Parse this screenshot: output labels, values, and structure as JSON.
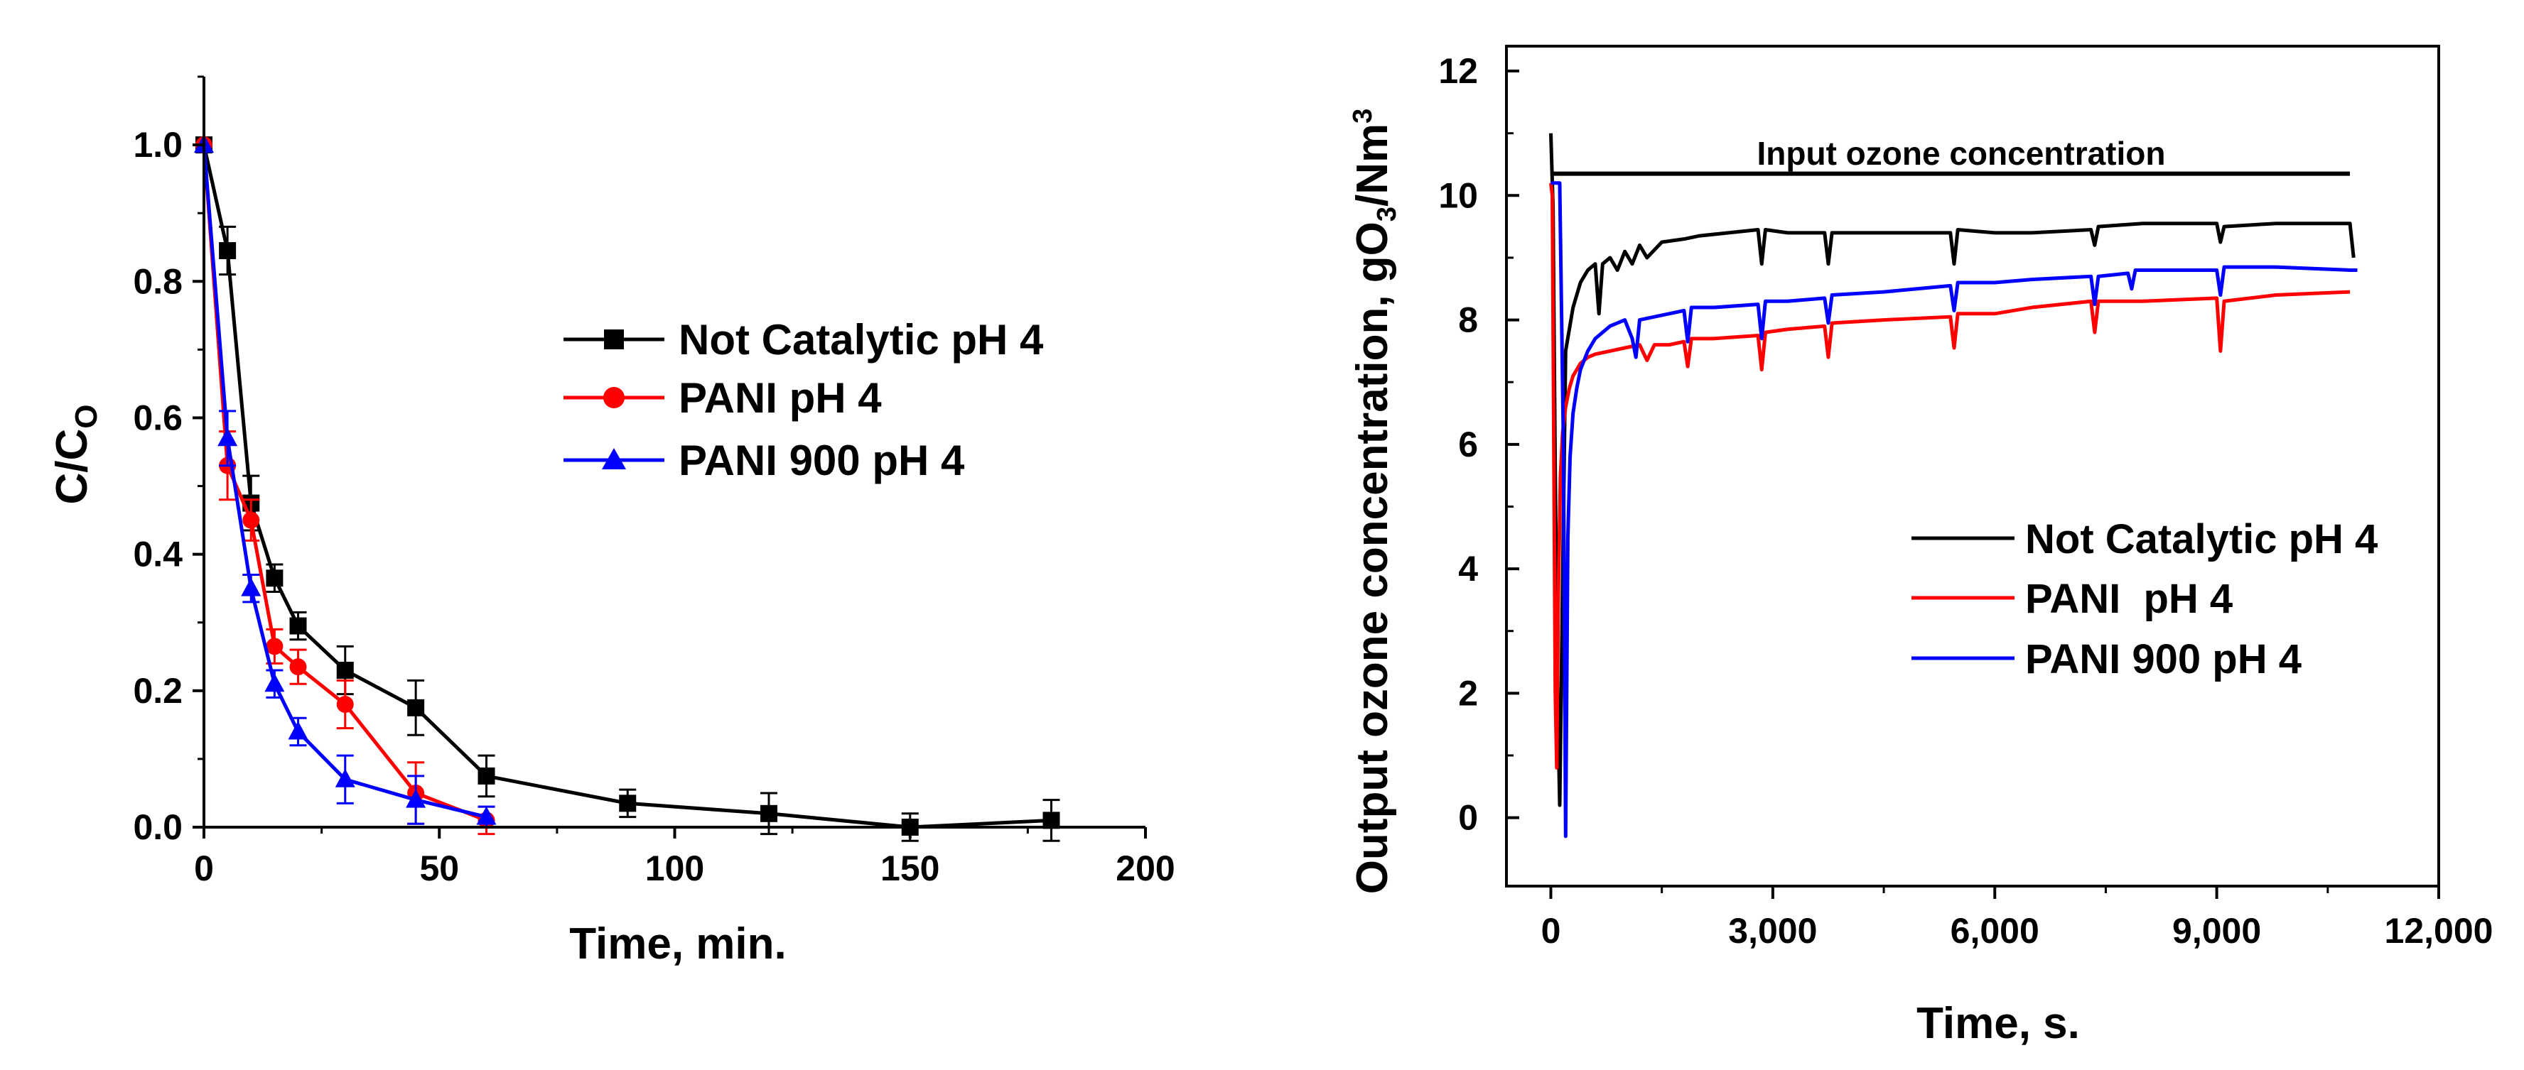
{
  "chart_data": [
    {
      "type": "line",
      "title": "",
      "xlabel": "Time, min.",
      "ylabel": "C/C",
      "ylabel_sub": "O",
      "xlim": [
        0,
        200
      ],
      "ylim": [
        0,
        1.1
      ],
      "xticks": [
        0,
        50,
        100,
        150,
        200
      ],
      "yticks": [
        0.0,
        0.2,
        0.4,
        0.6,
        0.8,
        1.0
      ],
      "xtick_labels": [
        "0",
        "50",
        "100",
        "150",
        "200"
      ],
      "ytick_labels": [
        "0.0",
        "0.2",
        "0.4",
        "0.6",
        "0.8",
        "1.0"
      ],
      "legend_position": "middle-right",
      "series": [
        {
          "name": "Not Catalytic pH 4",
          "color": "#000000",
          "marker": "square",
          "x": [
            0,
            5,
            10,
            15,
            20,
            30,
            45,
            60,
            90,
            120,
            150,
            180
          ],
          "y": [
            1.0,
            0.845,
            0.475,
            0.365,
            0.295,
            0.23,
            0.175,
            0.075,
            0.035,
            0.02,
            0.0,
            0.01
          ],
          "err": [
            0.0,
            0.035,
            0.04,
            0.02,
            0.02,
            0.035,
            0.04,
            0.03,
            0.02,
            0.03,
            0.02,
            0.03
          ]
        },
        {
          "name": "PANI pH 4",
          "color": "#ff0000",
          "marker": "circle",
          "x": [
            0,
            5,
            10,
            15,
            20,
            30,
            45,
            60
          ],
          "y": [
            1.0,
            0.53,
            0.45,
            0.265,
            0.235,
            0.18,
            0.05,
            0.01
          ],
          "err": [
            0.0,
            0.05,
            0.03,
            0.025,
            0.025,
            0.035,
            0.045,
            0.02
          ]
        },
        {
          "name": "PANI 900 pH 4",
          "color": "#0000ff",
          "marker": "triangle",
          "x": [
            0,
            5,
            10,
            15,
            20,
            30,
            45,
            60
          ],
          "y": [
            1.0,
            0.57,
            0.35,
            0.21,
            0.14,
            0.07,
            0.04,
            0.015
          ],
          "err": [
            0.0,
            0.04,
            0.02,
            0.02,
            0.02,
            0.035,
            0.035,
            0.015
          ]
        }
      ]
    },
    {
      "type": "line",
      "title": "",
      "xlabel": "Time, s.",
      "ylabel": "Output ozone concentration, gO",
      "ylabel_sub": "3",
      "ylabel_mid": "/Nm",
      "ylabel_sup": "3",
      "xlim": [
        -600,
        12000
      ],
      "ylim": [
        -1.1,
        12.4
      ],
      "xticks": [
        0,
        3000,
        6000,
        9000,
        12000
      ],
      "yticks": [
        0,
        2,
        4,
        6,
        8,
        10,
        12
      ],
      "xtick_labels": [
        "0",
        "3,000",
        "6,000",
        "9,000",
        "12,000"
      ],
      "ytick_labels": [
        "0",
        "2",
        "4",
        "6",
        "8",
        "10",
        "12"
      ],
      "legend_position": "lower-right",
      "annotations": [
        {
          "text": "Input ozone concentration",
          "x": 5800,
          "y": 10.95
        }
      ],
      "reference_line": {
        "label": "Input ozone concentration",
        "y": 10.35,
        "x_start": 0,
        "x_end": 10800
      },
      "series": [
        {
          "name": "Not Catalytic pH 4",
          "color": "#000000",
          "x": [
            0,
            30,
            60,
            90,
            120,
            200,
            300,
            400,
            500,
            600,
            650,
            700,
            800,
            900,
            1000,
            1100,
            1200,
            1300,
            1500,
            1800,
            2000,
            2400,
            2800,
            2850,
            2900,
            3200,
            3700,
            3750,
            3800,
            4500,
            5400,
            5450,
            5500,
            6000,
            6500,
            7300,
            7350,
            7400,
            8000,
            9000,
            9050,
            9100,
            9800,
            10800,
            10850
          ],
          "y": [
            11.0,
            9.8,
            5.5,
            2.0,
            0.2,
            7.5,
            8.2,
            8.6,
            8.8,
            8.9,
            8.1,
            8.9,
            9.0,
            8.8,
            9.1,
            8.9,
            9.2,
            9.0,
            9.25,
            9.3,
            9.35,
            9.4,
            9.45,
            8.9,
            9.45,
            9.4,
            9.4,
            8.9,
            9.4,
            9.4,
            9.4,
            8.9,
            9.45,
            9.4,
            9.4,
            9.45,
            9.2,
            9.5,
            9.55,
            9.55,
            9.25,
            9.5,
            9.55,
            9.55,
            9.0
          ]
        },
        {
          "name": "PANI  pH 4",
          "color": "#ff0000",
          "x": [
            0,
            20,
            40,
            60,
            80,
            100,
            130,
            160,
            200,
            250,
            300,
            400,
            500,
            600,
            800,
            1000,
            1200,
            1300,
            1400,
            1600,
            1800,
            1850,
            1900,
            2200,
            2800,
            2850,
            2900,
            3200,
            3700,
            3750,
            3800,
            4500,
            5400,
            5450,
            5500,
            6000,
            6500,
            7300,
            7350,
            7400,
            8000,
            9000,
            9050,
            9100,
            9800,
            10800
          ],
          "y": [
            10.2,
            10.0,
            6.0,
            2.0,
            0.8,
            3.5,
            5.5,
            6.2,
            6.6,
            6.9,
            7.1,
            7.3,
            7.4,
            7.45,
            7.5,
            7.55,
            7.6,
            7.35,
            7.6,
            7.6,
            7.65,
            7.25,
            7.7,
            7.7,
            7.75,
            7.2,
            7.8,
            7.85,
            7.9,
            7.4,
            7.95,
            8.0,
            8.05,
            7.55,
            8.1,
            8.1,
            8.2,
            8.3,
            7.8,
            8.3,
            8.3,
            8.35,
            7.5,
            8.3,
            8.4,
            8.45
          ]
        },
        {
          "name": "PANI 900 pH 4",
          "color": "#0000ff",
          "x": [
            0,
            60,
            120,
            170,
            200,
            230,
            260,
            300,
            350,
            400,
            500,
            600,
            800,
            1000,
            1100,
            1150,
            1200,
            1400,
            1600,
            1800,
            1850,
            1900,
            2200,
            2800,
            2850,
            2900,
            3200,
            3700,
            3750,
            3800,
            4500,
            5400,
            5450,
            5500,
            6000,
            6500,
            7300,
            7350,
            7400,
            7800,
            7850,
            7900,
            8500,
            9000,
            9050,
            9100,
            9800,
            10800,
            10900
          ],
          "y": [
            10.2,
            10.2,
            10.2,
            6.0,
            -0.3,
            4.5,
            5.8,
            6.5,
            6.9,
            7.2,
            7.5,
            7.7,
            7.9,
            8.0,
            7.7,
            7.4,
            8.0,
            8.05,
            8.1,
            8.15,
            7.65,
            8.2,
            8.2,
            8.25,
            7.7,
            8.3,
            8.3,
            8.35,
            7.95,
            8.4,
            8.45,
            8.55,
            8.15,
            8.6,
            8.6,
            8.65,
            8.7,
            8.25,
            8.7,
            8.75,
            8.5,
            8.8,
            8.8,
            8.8,
            8.4,
            8.85,
            8.85,
            8.8,
            8.8
          ]
        }
      ]
    }
  ]
}
